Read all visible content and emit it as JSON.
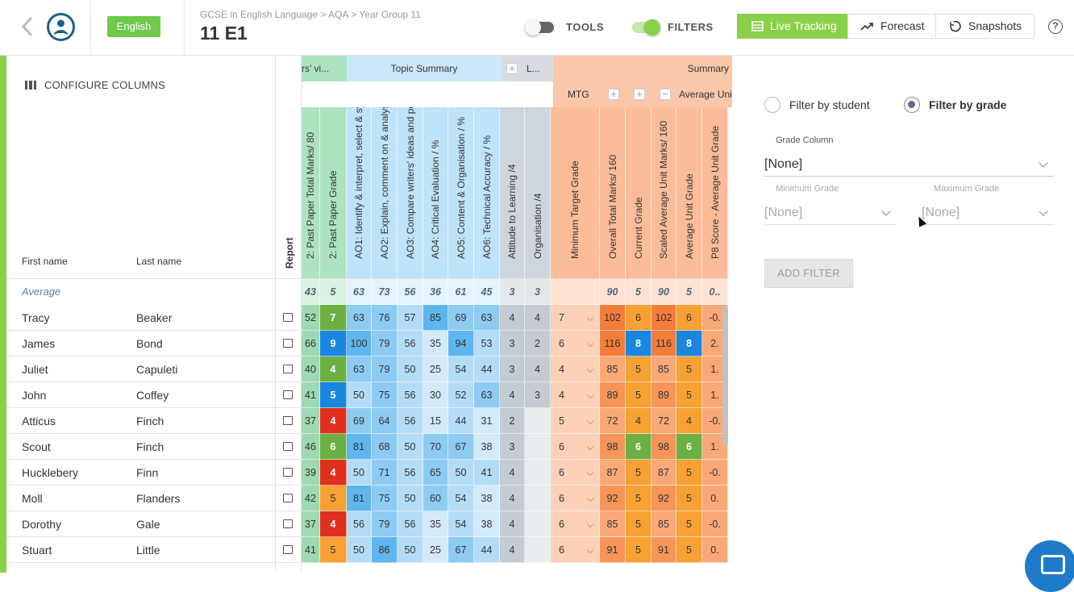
{
  "header": {
    "language_badge": "English",
    "breadcrumb": "GCSE in English Language > AQA > Year Group 11",
    "title": "11 E1",
    "tools_label": "TOOLS",
    "filters_label": "FILTERS",
    "tools_on": false,
    "filters_on": true,
    "tabs": [
      "Live Tracking",
      "Forecast",
      "Snapshots"
    ],
    "active_tab": "Live Tracking",
    "help_glyph": "?"
  },
  "left": {
    "configure_label": "CONFIGURE COLUMNS",
    "first_name_header": "First name",
    "last_name_header": "Last name",
    "report_header": "Report",
    "average_label": "Average"
  },
  "grid": {
    "group_headers": {
      "writers": "rs’ vi...",
      "topic": "Topic Summary",
      "l_group": "L...",
      "summary": "Summary"
    },
    "sub_headers": {
      "mtg": "MTG",
      "avg_unit": "Average Uni"
    },
    "columns": [
      "2: Past Paper Total Marks/ 80",
      "2: Past Paper Grade",
      "AO1: Identify & interpret, select & syn...",
      "AO2: Explain, comment on & analyse ...",
      "AO3: Compare writers' ideas and pers...",
      "AO4: Critical Evaluation / %",
      "AO5: Content & Organisation / %",
      "AO6: Technical Accuracy / %",
      "Attitude to Learning /4",
      "Organisation /4",
      "Minimum Target Grade",
      "Overall Total Marks/ 160",
      "Current Grade",
      "Scaled Average Unit Marks/ 160",
      "Average Unit Grade",
      "P8 Score - Average Unit Grade"
    ],
    "averages": [
      "43",
      "5",
      "63",
      "73",
      "56",
      "36",
      "61",
      "45",
      "3",
      "3",
      "",
      "90",
      "5",
      "90",
      "5",
      "0.."
    ],
    "students": [
      {
        "first": "Tracy",
        "last": "Beaker",
        "v": [
          "52",
          "7",
          "63",
          "76",
          "57",
          "85",
          "69",
          "63",
          "4",
          "4",
          "7",
          "102",
          "6",
          "102",
          "6",
          "-0."
        ]
      },
      {
        "first": "James",
        "last": "Bond",
        "v": [
          "66",
          "9",
          "100",
          "79",
          "56",
          "35",
          "94",
          "53",
          "3",
          "2",
          "6",
          "116",
          "8",
          "116",
          "8",
          "2."
        ]
      },
      {
        "first": "Juliet",
        "last": "Capuleti",
        "v": [
          "40",
          "4",
          "63",
          "79",
          "50",
          "25",
          "54",
          "44",
          "3",
          "4",
          "4",
          "85",
          "5",
          "85",
          "5",
          "1."
        ]
      },
      {
        "first": "John",
        "last": "Coffey",
        "v": [
          "41",
          "5",
          "50",
          "75",
          "56",
          "30",
          "52",
          "63",
          "4",
          "3",
          "4",
          "89",
          "5",
          "89",
          "5",
          "1."
        ]
      },
      {
        "first": "Atticus",
        "last": "Finch",
        "v": [
          "37",
          "4",
          "69",
          "64",
          "56",
          "15",
          "44",
          "31",
          "2",
          "",
          "5",
          "72",
          "4",
          "72",
          "4",
          "-0."
        ]
      },
      {
        "first": "Scout",
        "last": "Finch",
        "v": [
          "46",
          "6",
          "81",
          "68",
          "50",
          "70",
          "67",
          "38",
          "3",
          "",
          "6",
          "98",
          "6",
          "98",
          "6",
          "1."
        ]
      },
      {
        "first": "Hucklebery",
        "last": "Finn",
        "v": [
          "39",
          "4",
          "50",
          "71",
          "56",
          "65",
          "50",
          "41",
          "4",
          "",
          "6",
          "87",
          "5",
          "87",
          "5",
          "-0."
        ]
      },
      {
        "first": "Moll",
        "last": "Flanders",
        "v": [
          "42",
          "5",
          "81",
          "75",
          "50",
          "60",
          "54",
          "38",
          "4",
          "",
          "6",
          "92",
          "5",
          "92",
          "5",
          "0."
        ]
      },
      {
        "first": "Dorothy",
        "last": "Gale",
        "v": [
          "37",
          "4",
          "56",
          "79",
          "56",
          "35",
          "54",
          "38",
          "4",
          "",
          "6",
          "85",
          "5",
          "85",
          "5",
          "-0."
        ]
      },
      {
        "first": "Stuart",
        "last": "Little",
        "v": [
          "41",
          "5",
          "50",
          "86",
          "50",
          "25",
          "67",
          "44",
          "4",
          "",
          "6",
          "91",
          "5",
          "91",
          "5",
          "0."
        ]
      }
    ]
  },
  "filter_panel": {
    "by_student_label": "Filter by student",
    "by_grade_label": "Filter by grade",
    "selected": "Filter by grade",
    "grade_column_label": "Grade Column",
    "grade_column_value": "[None]",
    "min_grade_label": "Minimum Grade",
    "min_grade_value": "[None]",
    "max_grade_label": "Maximum Grade",
    "max_grade_value": "[None]",
    "add_filter_label": "ADD FILTER"
  },
  "colors": {
    "brand_green": "#8bd04b",
    "grade_red": "#e0301e",
    "grade_orange": "#f7a034",
    "grade_green": "#6bb043",
    "grade_blue": "#1a86e0",
    "grade_teal": "#4fb890"
  }
}
